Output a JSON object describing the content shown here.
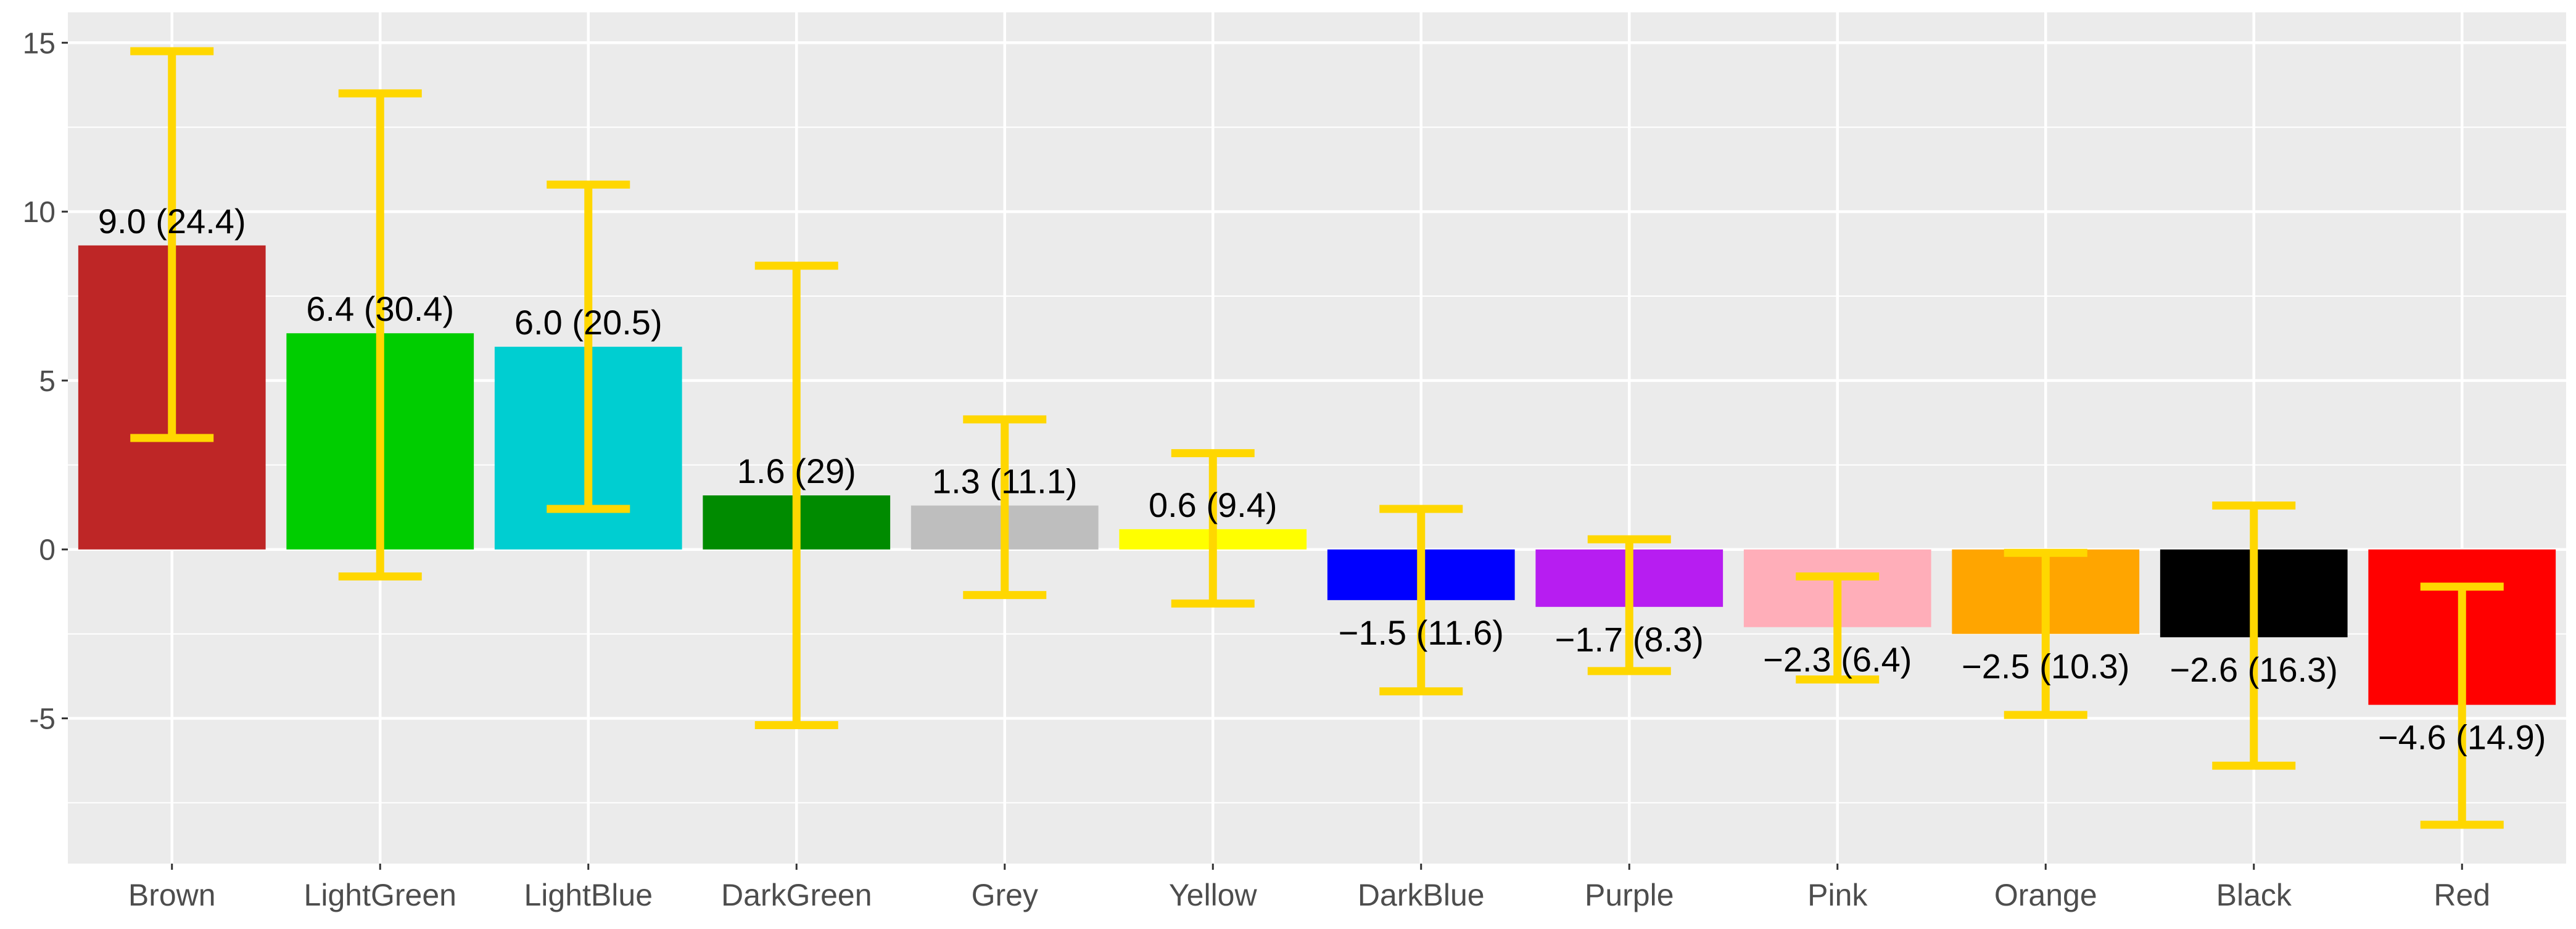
{
  "chart_data": {
    "type": "bar",
    "title": "",
    "xlabel": "",
    "ylabel": "",
    "categories": [
      "Brown",
      "LightGreen",
      "LightBlue",
      "DarkGreen",
      "Grey",
      "Yellow",
      "DarkBlue",
      "Purple",
      "Pink",
      "Orange",
      "Black",
      "Red"
    ],
    "values": [
      9.0,
      6.4,
      6.0,
      1.6,
      1.3,
      0.6,
      -1.5,
      -1.7,
      -2.3,
      -2.5,
      -2.6,
      -4.6
    ],
    "data_labels": [
      "9.0 (24.4)",
      "6.4 (30.4)",
      "6.0 (20.5)",
      "1.6 (29)",
      "1.3 (11.1)",
      "0.6 (9.4)",
      "−1.5 (11.6)",
      "−1.7 (8.3)",
      "−2.3 (6.4)",
      "−2.5 (10.3)",
      "−2.6 (16.3)",
      "−4.6 (14.9)"
    ],
    "error_low": [
      3.3,
      -0.8,
      1.2,
      -5.2,
      -1.35,
      -1.6,
      -4.2,
      -3.6,
      -3.85,
      -4.9,
      -6.4,
      -8.15
    ],
    "error_high": [
      14.75,
      13.5,
      10.8,
      8.4,
      3.85,
      2.85,
      1.2,
      0.3,
      -0.8,
      -0.1,
      1.3,
      -1.1
    ],
    "bar_colors": [
      "#BE2626",
      "#00CD00",
      "#00CED1",
      "#008B00",
      "#BEBEBE",
      "#FFFF00",
      "#0000FF",
      "#B71DF1",
      "#FFAEB9",
      "#FFA500",
      "#000000",
      "#FF0000"
    ],
    "error_bar_color": "#FFD700",
    "ylim": [
      -9.3,
      15.9
    ],
    "yticks": [
      -5,
      0,
      5,
      10,
      15
    ],
    "ytick_labels": [
      "-5",
      "0",
      "5",
      "10",
      "15"
    ],
    "grid": true,
    "legend": "none",
    "panel_background": "#EBEBEB",
    "grid_color": "#FFFFFF"
  }
}
